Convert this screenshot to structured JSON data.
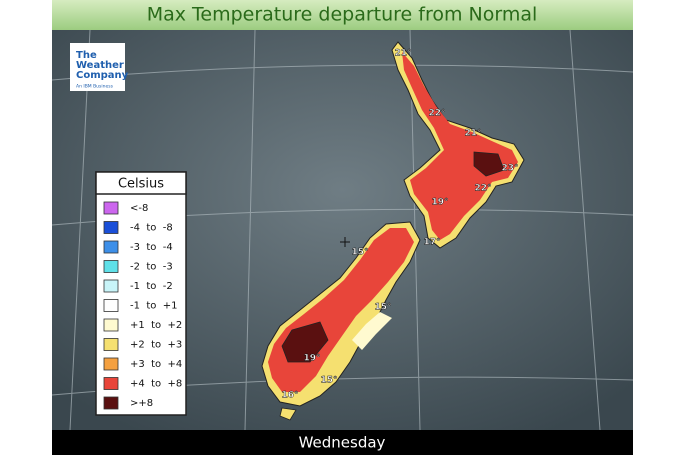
{
  "header": {
    "title": "Max Temperature departure from Normal"
  },
  "logo": {
    "lines": [
      "The",
      "Weather",
      "Company"
    ],
    "tagline": "An IBM Business"
  },
  "legend": {
    "title": "Celsius",
    "items": [
      {
        "label": "<-8",
        "color": "#cc66ee"
      },
      {
        "label": "-4  to  -8",
        "color": "#1a4fd8"
      },
      {
        "label": "-3  to  -4",
        "color": "#3d8fe8"
      },
      {
        "label": "-2  to  -3",
        "color": "#5fe0e8"
      },
      {
        "label": "-1  to  -2",
        "color": "#c8f4f8"
      },
      {
        "label": "-1  to  +1",
        "color": "#ffffff"
      },
      {
        "label": "+1  to  +2",
        "color": "#fffad0"
      },
      {
        "label": "+2  to  +3",
        "color": "#f5e070"
      },
      {
        "label": "+3  to  +4",
        "color": "#f4a040"
      },
      {
        "label": "+4  to  +8",
        "color": "#e8453a"
      },
      {
        "label": ">+8",
        "color": "#5a1010"
      }
    ]
  },
  "map_labels": [
    {
      "text": "21°"
    },
    {
      "text": "22°"
    },
    {
      "text": "21°"
    },
    {
      "text": "23°"
    },
    {
      "text": "22°"
    },
    {
      "text": "19°"
    },
    {
      "text": "17°"
    },
    {
      "text": "15°"
    },
    {
      "text": "15°"
    },
    {
      "text": "19°"
    },
    {
      "text": "15°"
    },
    {
      "text": "16°"
    }
  ],
  "footer": {
    "day": "Wednesday"
  }
}
